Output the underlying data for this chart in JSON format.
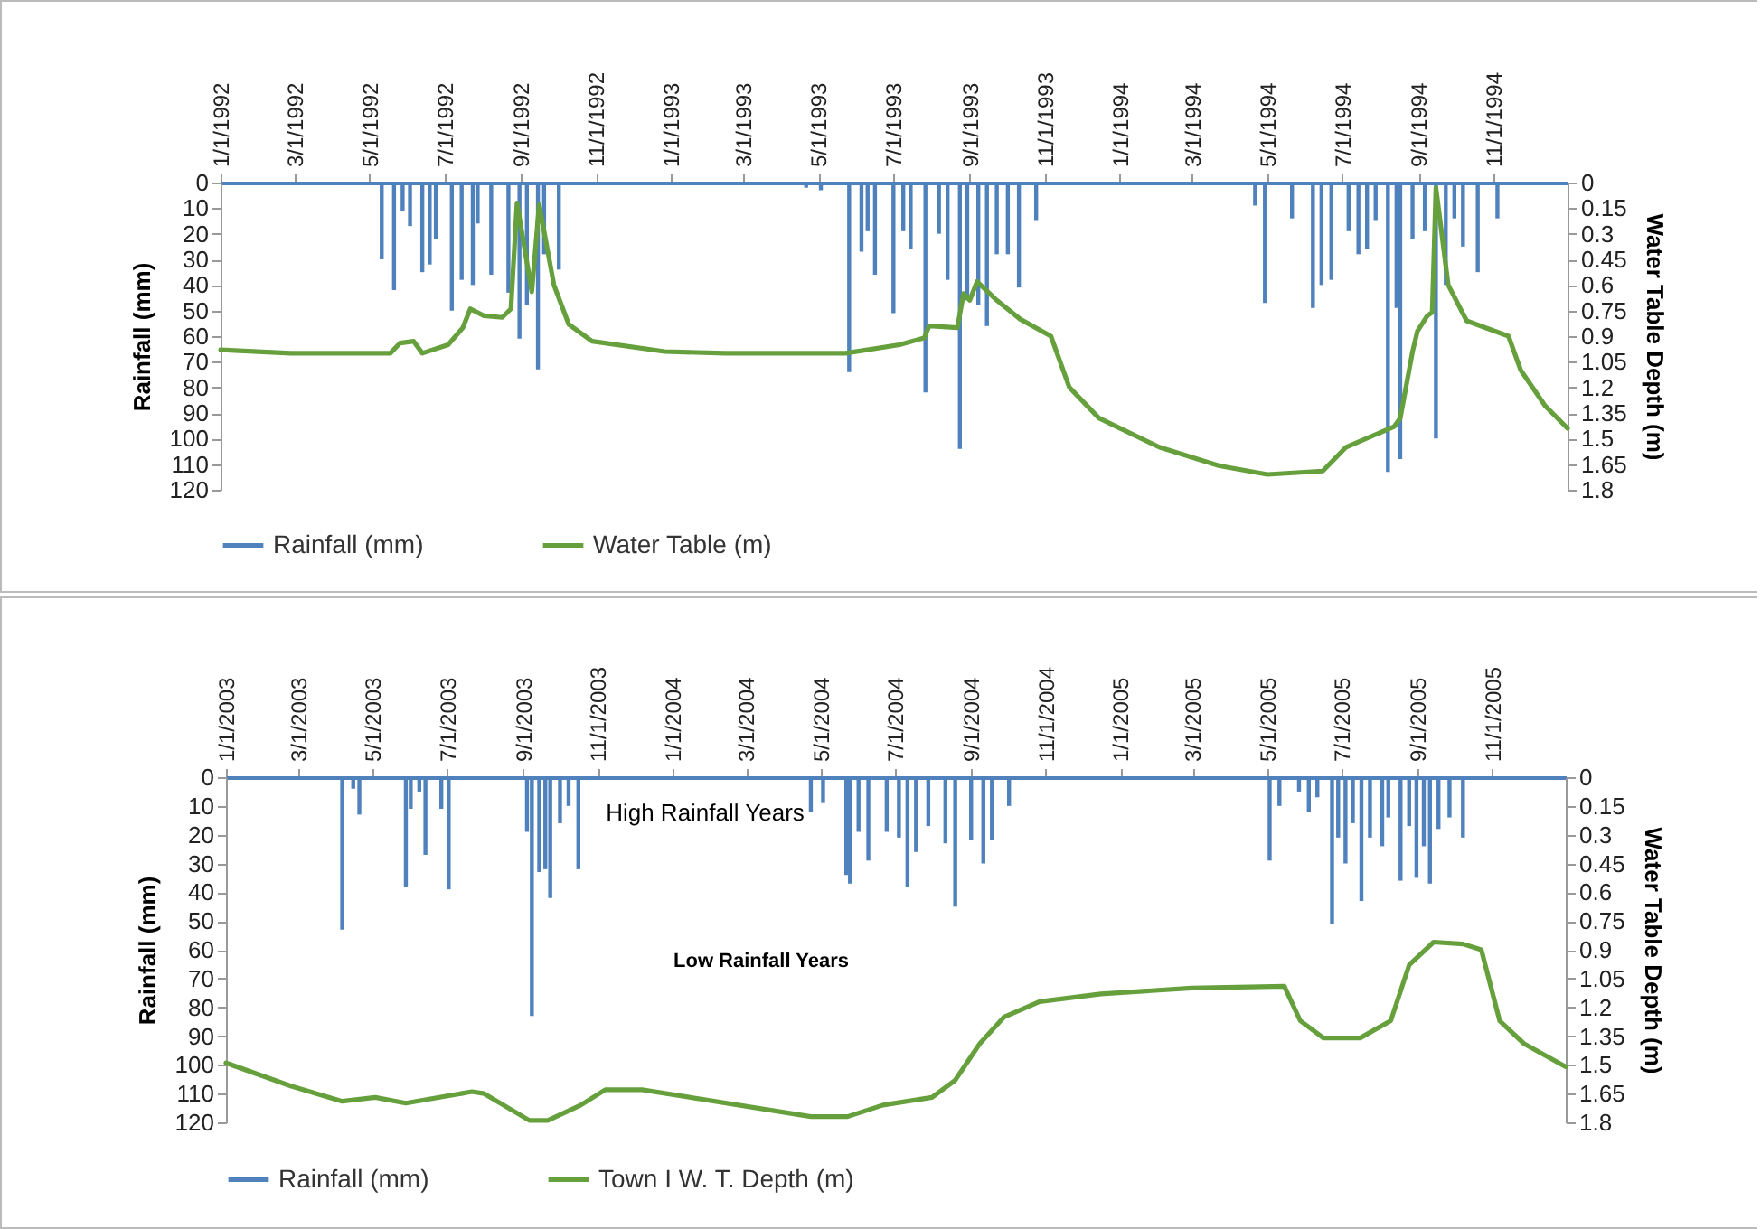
{
  "chart_data": [
    {
      "type": "line",
      "ylabel": "Rainfall (mm)",
      "y2label": "Water Table Depth (m)",
      "legend": "bottom",
      "xlim": [
        "1992-01-01",
        "1994-12-31"
      ],
      "xticks": [
        {
          "value": "1992-01-01",
          "label": "1/1/1992"
        },
        {
          "value": "1992-03-01",
          "label": "3/1/1992"
        },
        {
          "value": "1992-05-01",
          "label": "5/1/1992"
        },
        {
          "value": "1992-07-01",
          "label": "7/1/1992"
        },
        {
          "value": "1992-09-01",
          "label": "9/1/1992"
        },
        {
          "value": "1992-11-01",
          "label": "11/1/1992"
        },
        {
          "value": "1993-01-01",
          "label": "1/1/1993"
        },
        {
          "value": "1993-03-01",
          "label": "3/1/1993"
        },
        {
          "value": "1993-05-01",
          "label": "5/1/1993"
        },
        {
          "value": "1993-07-01",
          "label": "7/1/1993"
        },
        {
          "value": "1993-09-01",
          "label": "9/1/1993"
        },
        {
          "value": "1993-11-01",
          "label": "11/1/1993"
        },
        {
          "value": "1994-01-01",
          "label": "1/1/1994"
        },
        {
          "value": "1994-03-01",
          "label": "3/1/1994"
        },
        {
          "value": "1994-05-01",
          "label": "5/1/1994"
        },
        {
          "value": "1994-07-01",
          "label": "7/1/1994"
        },
        {
          "value": "1994-09-01",
          "label": "9/1/1994"
        },
        {
          "value": "1994-11-01",
          "label": "11/1/1994"
        }
      ],
      "ylim": [
        120,
        0
      ],
      "yticks": [
        0,
        10,
        20,
        30,
        40,
        50,
        60,
        70,
        80,
        90,
        100,
        110,
        120
      ],
      "y2lim": [
        1.8,
        0
      ],
      "y2ticks": [
        0,
        0.15,
        0.3,
        0.45,
        0.6,
        0.75,
        0.9,
        1.05,
        1.2,
        1.35,
        1.5,
        1.65,
        1.8
      ],
      "series": [
        {
          "name": "Rainfall (mm)",
          "type": "bar",
          "color": "#4f81bd",
          "x": [
            "1992-04-07",
            "1992-05-11",
            "1992-05-21",
            "1992-05-28",
            "1992-06-03",
            "1992-06-13",
            "1992-06-19",
            "1992-06-24",
            "1992-07-07",
            "1992-07-15",
            "1992-07-24",
            "1992-07-28",
            "1992-08-08",
            "1992-08-22",
            "1992-08-31",
            "1992-09-06",
            "1992-09-15",
            "1992-09-20",
            "1992-10-02",
            "1993-04-21",
            "1993-05-03",
            "1993-05-26",
            "1993-06-05",
            "1993-06-10",
            "1993-06-16",
            "1993-07-01",
            "1993-07-09",
            "1993-07-15",
            "1993-07-27",
            "1993-08-07",
            "1993-08-14",
            "1993-08-24",
            "1993-08-30",
            "1993-09-08",
            "1993-09-15",
            "1993-09-23",
            "1993-10-02",
            "1993-10-11",
            "1993-10-25",
            "1994-04-21",
            "1994-04-29",
            "1994-05-21",
            "1994-06-07",
            "1994-06-14",
            "1994-06-22",
            "1994-07-06",
            "1994-07-14",
            "1994-07-21",
            "1994-07-28",
            "1994-08-07",
            "1994-08-14",
            "1994-08-17",
            "1994-08-27",
            "1994-09-06",
            "1994-09-15",
            "1994-09-23",
            "1994-09-30",
            "1994-10-07",
            "1994-10-19",
            "1994-11-04"
          ],
          "values": [
            1,
            30,
            42,
            11,
            17,
            35,
            32,
            22,
            50,
            38,
            40,
            16,
            36,
            43,
            61,
            48,
            73,
            28,
            34,
            2,
            3,
            74,
            27,
            19,
            36,
            51,
            19,
            26,
            82,
            20,
            38,
            104,
            46,
            48,
            56,
            28,
            28,
            41,
            15,
            9,
            47,
            14,
            49,
            40,
            38,
            19,
            28,
            26,
            15,
            113,
            49,
            108,
            22,
            19,
            100,
            40,
            14,
            25,
            35,
            14
          ]
        },
        {
          "name": "Water Table (m)",
          "axis": "y2",
          "color": "#66a03c",
          "x": [
            "1992-01-01",
            "1992-02-27",
            "1992-05-18",
            "1992-05-26",
            "1992-06-06",
            "1992-06-13",
            "1992-07-04",
            "1992-07-16",
            "1992-07-22",
            "1992-08-02",
            "1992-08-17",
            "1992-08-24",
            "1992-08-29",
            "1992-09-10",
            "1992-09-16",
            "1992-09-28",
            "1992-10-10",
            "1992-10-29",
            "1992-12-27",
            "1993-02-14",
            "1993-05-23",
            "1993-07-06",
            "1993-07-26",
            "1993-07-30",
            "1993-08-22",
            "1993-08-27",
            "1993-09-01",
            "1993-09-07",
            "1993-09-23",
            "1993-10-12",
            "1993-11-06",
            "1993-11-21",
            "1993-12-15",
            "1994-02-02",
            "1994-03-23",
            "1994-05-01",
            "1994-06-15",
            "1994-07-04",
            "1994-08-12",
            "1994-08-17",
            "1994-08-27",
            "1994-08-31",
            "1994-09-08",
            "1994-09-12",
            "1994-09-15",
            "1994-09-25",
            "1994-10-10",
            "1994-10-25",
            "1994-11-13",
            "1994-11-23",
            "1994-12-13",
            "1994-12-31"
          ],
          "values": [
            0.98,
            1.0,
            1.0,
            0.94,
            0.93,
            1.0,
            0.95,
            0.85,
            0.74,
            0.78,
            0.79,
            0.74,
            0.12,
            0.64,
            0.13,
            0.6,
            0.83,
            0.93,
            0.99,
            1.0,
            1.0,
            0.95,
            0.91,
            0.84,
            0.85,
            0.65,
            0.69,
            0.58,
            0.69,
            0.8,
            0.9,
            1.2,
            1.38,
            1.55,
            1.66,
            1.71,
            1.69,
            1.55,
            1.43,
            1.38,
            0.99,
            0.87,
            0.78,
            0.76,
            0.03,
            0.6,
            0.81,
            0.85,
            0.9,
            1.1,
            1.31,
            1.44
          ]
        }
      ]
    },
    {
      "type": "line",
      "ylabel": "Rainfall (mm)",
      "y2label": "Water Table Depth (m)",
      "legend": "bottom",
      "annotations": [
        "High Rainfall Years",
        "Low Rainfall Years"
      ],
      "xlim": [
        "2003-01-01",
        "2005-12-31"
      ],
      "xticks": [
        {
          "value": "2003-01-01",
          "label": "1/1/2003"
        },
        {
          "value": "2003-03-01",
          "label": "3/1/2003"
        },
        {
          "value": "2003-05-01",
          "label": "5/1/2003"
        },
        {
          "value": "2003-07-01",
          "label": "7/1/2003"
        },
        {
          "value": "2003-09-01",
          "label": "9/1/2003"
        },
        {
          "value": "2003-11-01",
          "label": "11/1/2003"
        },
        {
          "value": "2004-01-01",
          "label": "1/1/2004"
        },
        {
          "value": "2004-03-01",
          "label": "3/1/2004"
        },
        {
          "value": "2004-05-01",
          "label": "5/1/2004"
        },
        {
          "value": "2004-07-01",
          "label": "7/1/2004"
        },
        {
          "value": "2004-09-01",
          "label": "9/1/2004"
        },
        {
          "value": "2004-11-01",
          "label": "11/1/2004"
        },
        {
          "value": "2005-01-01",
          "label": "1/1/2005"
        },
        {
          "value": "2005-03-01",
          "label": "3/1/2005"
        },
        {
          "value": "2005-05-01",
          "label": "5/1/2005"
        },
        {
          "value": "2005-07-01",
          "label": "7/1/2005"
        },
        {
          "value": "2005-09-01",
          "label": "9/1/2005"
        },
        {
          "value": "2005-11-01",
          "label": "11/1/2005"
        }
      ],
      "ylim": [
        120,
        0
      ],
      "yticks": [
        0,
        10,
        20,
        30,
        40,
        50,
        60,
        70,
        80,
        90,
        100,
        110,
        120
      ],
      "y2lim": [
        1.8,
        0
      ],
      "y2ticks": [
        0,
        0.15,
        0.3,
        0.45,
        0.6,
        0.75,
        0.9,
        1.05,
        1.2,
        1.35,
        1.5,
        1.65,
        1.8
      ],
      "series": [
        {
          "name": "Rainfall (mm)",
          "type": "bar",
          "color": "#4f81bd",
          "x": [
            "2003-04-06",
            "2003-04-15",
            "2003-04-20",
            "2003-05-28",
            "2003-06-01",
            "2003-06-08",
            "2003-06-13",
            "2003-06-26",
            "2003-07-02",
            "2003-09-04",
            "2003-09-08",
            "2003-09-14",
            "2003-09-19",
            "2003-09-23",
            "2003-10-01",
            "2003-10-08",
            "2003-10-16",
            "2004-04-23",
            "2004-05-03",
            "2004-05-22",
            "2004-05-25",
            "2004-06-01",
            "2004-06-09",
            "2004-06-24",
            "2004-07-04",
            "2004-07-11",
            "2004-07-18",
            "2004-07-28",
            "2004-08-11",
            "2004-08-19",
            "2004-09-01",
            "2004-09-11",
            "2004-09-18",
            "2004-10-02",
            "2005-05-03",
            "2005-05-11",
            "2005-05-27",
            "2005-06-04",
            "2005-06-11",
            "2005-06-23",
            "2005-06-28",
            "2005-07-04",
            "2005-07-10",
            "2005-07-17",
            "2005-07-24",
            "2005-08-03",
            "2005-08-08",
            "2005-08-18",
            "2005-08-25",
            "2005-08-31",
            "2005-09-06",
            "2005-09-11",
            "2005-09-18",
            "2005-09-27",
            "2005-10-08"
          ],
          "values": [
            53,
            4,
            13,
            38,
            11,
            5,
            27,
            11,
            39,
            19,
            83,
            33,
            32,
            42,
            16,
            10,
            32,
            12,
            9,
            34,
            37,
            19,
            29,
            19,
            21,
            38,
            26,
            17,
            23,
            45,
            22,
            30,
            22,
            10,
            29,
            10,
            5,
            12,
            7,
            51,
            21,
            30,
            16,
            43,
            21,
            24,
            14,
            36,
            17,
            35,
            24,
            37,
            18,
            14,
            21
          ]
        },
        {
          "name": "Town I W. T. Depth (m)",
          "axis": "y2",
          "color": "#66a03c",
          "x": [
            "2003-01-01",
            "2003-02-23",
            "2003-04-06",
            "2003-05-03",
            "2003-05-28",
            "2003-07-21",
            "2003-07-31",
            "2003-09-06",
            "2003-09-21",
            "2003-10-18",
            "2003-11-07",
            "2003-12-07",
            "2004-04-23",
            "2004-05-23",
            "2004-06-21",
            "2004-07-31",
            "2004-08-19",
            "2004-09-08",
            "2004-09-28",
            "2004-10-27",
            "2004-12-16",
            "2005-02-28",
            "2005-05-15",
            "2005-05-28",
            "2005-06-16",
            "2005-07-16",
            "2005-08-10",
            "2005-08-25",
            "2005-09-14",
            "2005-10-08",
            "2005-10-23",
            "2005-11-07",
            "2005-11-27",
            "2005-12-31"
          ],
          "values": [
            1.49,
            1.61,
            1.69,
            1.67,
            1.7,
            1.64,
            1.65,
            1.79,
            1.79,
            1.71,
            1.63,
            1.63,
            1.77,
            1.77,
            1.71,
            1.67,
            1.58,
            1.39,
            1.25,
            1.17,
            1.13,
            1.1,
            1.09,
            1.27,
            1.36,
            1.36,
            1.27,
            0.98,
            0.86,
            0.87,
            0.9,
            1.27,
            1.39,
            1.51
          ]
        }
      ]
    }
  ]
}
